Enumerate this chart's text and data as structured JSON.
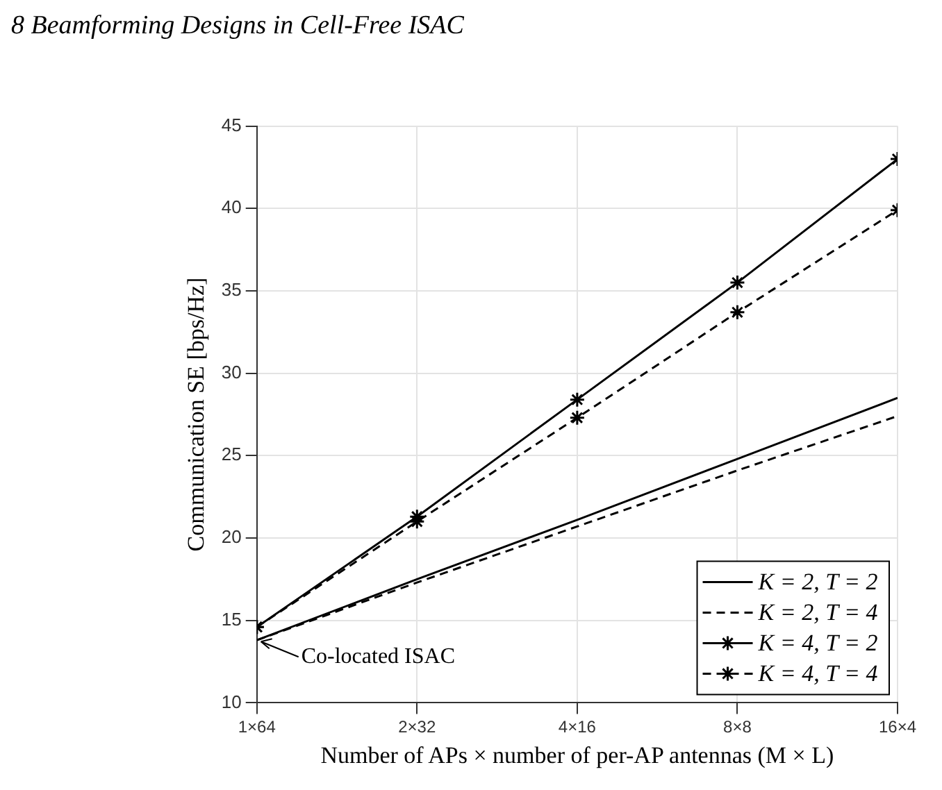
{
  "chart_data": {
    "type": "line",
    "title": "8 Beamforming Designs in Cell-Free ISAC",
    "xlabel": "Number of APs × number of per-AP antennas (M × L)",
    "ylabel": "Communication SE [bps/Hz]",
    "categories": [
      "1×64",
      "2×32",
      "4×16",
      "8×8",
      "16×4"
    ],
    "ylim": [
      10,
      45
    ],
    "yticks": [
      10,
      15,
      20,
      25,
      30,
      35,
      40,
      45
    ],
    "grid": true,
    "legend": "bottom right",
    "series": [
      {
        "name": "K = 2, T = 2",
        "color": "#000000",
        "line_style": "solid",
        "marker": "none",
        "values": [
          13.8,
          17.5,
          21.1,
          24.8,
          28.5
        ]
      },
      {
        "name": "K = 2, T = 4",
        "color": "#000000",
        "line_style": "dashed",
        "marker": "none",
        "values": [
          13.8,
          17.3,
          20.7,
          24.1,
          27.4
        ]
      },
      {
        "name": "K = 4, T = 2",
        "color": "#000000",
        "line_style": "solid",
        "marker": "cross",
        "values": [
          14.6,
          21.3,
          28.4,
          35.5,
          43.0
        ]
      },
      {
        "name": "K = 4, T = 4",
        "color": "#000000",
        "line_style": "dashed",
        "marker": "cross",
        "values": [
          14.6,
          21.0,
          27.3,
          33.7,
          39.9
        ]
      }
    ],
    "annotations": [
      {
        "text": "Co-located ISAC",
        "x": "1×64",
        "y": 13.8
      }
    ]
  }
}
